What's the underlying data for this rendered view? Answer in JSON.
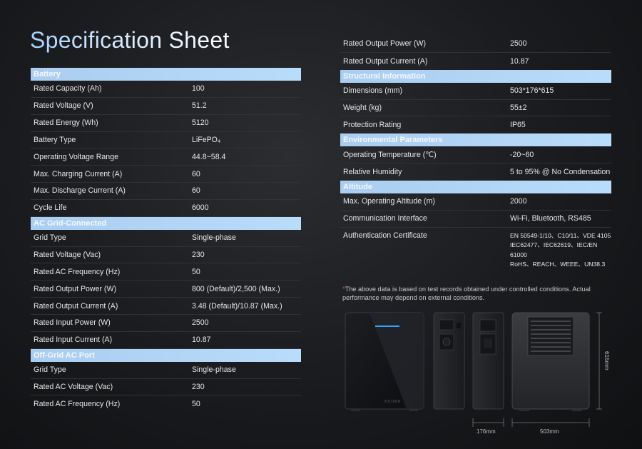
{
  "title": "Specification Sheet",
  "left_sections": [
    {
      "header": "Battery",
      "rows": [
        {
          "label": "Rated Capacity (Ah)",
          "value": "100"
        },
        {
          "label": "Rated Voltage (V)",
          "value": "51.2"
        },
        {
          "label": "Rated Energy (Wh)",
          "value": "5120"
        },
        {
          "label": "Battery Type",
          "value": "LiFePO₄"
        },
        {
          "label": "Operating Voltage Range",
          "value": "44.8~58.4"
        },
        {
          "label": "Max. Charging Current (A)",
          "value": "60"
        },
        {
          "label": "Max. Discharge Current (A)",
          "value": "60"
        },
        {
          "label": "Cycle Life",
          "value": "6000"
        }
      ]
    },
    {
      "header": "AC Grid-Connected",
      "rows": [
        {
          "label": "Grid Type",
          "value": "Single-phase"
        },
        {
          "label": "Rated Voltage (Vac)",
          "value": "230"
        },
        {
          "label": "Rated AC Frequency (Hz)",
          "value": "50"
        },
        {
          "label": "Rated Output Power (W)",
          "value": "800 (Default)/2,500 (Max.)"
        },
        {
          "label": "Rated Output Current (A)",
          "value": "3.48 (Default)/10.87 (Max.)"
        },
        {
          "label": "Rated Input Power (W)",
          "value": "2500"
        },
        {
          "label": "Rated Input Current (A)",
          "value": "10.87"
        }
      ]
    },
    {
      "header": "Off-Grid AC Port",
      "rows": [
        {
          "label": "Grid Type",
          "value": "Single-phase"
        },
        {
          "label": "Rated AC Voltage (Vac)",
          "value": "230"
        },
        {
          "label": "Rated AC Frequency (Hz)",
          "value": "50"
        }
      ]
    }
  ],
  "right_top_rows": [
    {
      "label": "Rated Output Power (W)",
      "value": "2500"
    },
    {
      "label": "Rated Output Current (A)",
      "value": "10.87"
    }
  ],
  "right_sections": [
    {
      "header": "Structural Information",
      "rows": [
        {
          "label": "Dimensions (mm)",
          "value": "503*176*615"
        },
        {
          "label": "Weight (kg)",
          "value": "55±2"
        },
        {
          "label": "Protection Rating",
          "value": "IP65"
        }
      ]
    },
    {
      "header": "Environmental Parameters",
      "rows": [
        {
          "label": "Operating Temperature (℃)",
          "value": "-20~60"
        },
        {
          "label": "Relative Humidity",
          "value": "5 to 95% @ No Condensation"
        }
      ]
    },
    {
      "header": "Altitude",
      "rows": [
        {
          "label": "Max. Operating Altitude (m)",
          "value": "2000"
        },
        {
          "label": "Communication Interface",
          "value": "Wi-Fi, Bluetooth, RS485"
        }
      ],
      "cert": {
        "label": "Authentication Certificate",
        "lines": [
          "EN 50549-1/10、C10/11、VDE 4105",
          "IEC62477、IEC62619、IEC/EN 61000",
          "RoHS、REACH、WEEE、UN38.3"
        ]
      }
    }
  ],
  "note": {
    "star": "*",
    "text": "The above data is based on test records obtained under controlled conditions. Actual performance may depend on external conditions."
  },
  "dimensions": {
    "height": "615mm",
    "depth": "176mm",
    "width": "503mm"
  },
  "brand_mark": "VOLTDEN"
}
